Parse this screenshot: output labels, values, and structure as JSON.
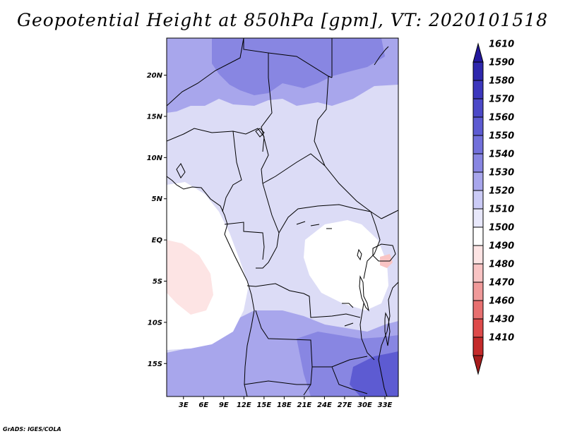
{
  "title": "Geopotential Height at 850hPa [gpm], VT: 2020101518",
  "credit": "GrADS: IGES/COLA",
  "axes": {
    "lon_ticks": [
      "3E",
      "6E",
      "9E",
      "12E",
      "15E",
      "18E",
      "21E",
      "24E",
      "27E",
      "30E",
      "33E"
    ],
    "lat_ticks": [
      "20N",
      "15N",
      "10N",
      "5N",
      "EQ",
      "5S",
      "10S",
      "15S"
    ],
    "lon_range": [
      0.5,
      35
    ],
    "lat_range": [
      -19,
      24.5
    ]
  },
  "colorbar": {
    "levels": [
      "1610",
      "1590",
      "1580",
      "1570",
      "1560",
      "1550",
      "1540",
      "1530",
      "1520",
      "1510",
      "1500",
      "1490",
      "1480",
      "1470",
      "1460",
      "1430",
      "1410"
    ],
    "colors": [
      "#23179d",
      "#2e27ad",
      "#3c37bd",
      "#4c49c8",
      "#5d5bd2",
      "#7270db",
      "#8886e2",
      "#a8a6ec",
      "#cbcbf6",
      "#e8e8fb",
      "#ffffff",
      "#fde4e4",
      "#f9c4c4",
      "#f09a9a",
      "#e87070",
      "#de4a4a",
      "#c42a2a",
      "#a61c1c"
    ]
  },
  "map": {
    "background_color": "#dcdcf6",
    "field_regions": [
      {
        "name": "north-high-region",
        "color": "#a8a6ec"
      },
      {
        "name": "north-peak-region",
        "color": "#8886e2"
      },
      {
        "name": "south-high-region",
        "color": "#a8a6ec"
      },
      {
        "name": "southeast-high-region",
        "color": "#8886e2"
      },
      {
        "name": "southeast-peak-region",
        "color": "#5d5bd2"
      },
      {
        "name": "atlantic-low-region",
        "color": "#ffffff"
      },
      {
        "name": "atlantic-min-region",
        "color": "#fde4e4"
      },
      {
        "name": "congo-low-region",
        "color": "#ffffff"
      },
      {
        "name": "lakes-min-region",
        "color": "#f9c4c4"
      }
    ]
  }
}
